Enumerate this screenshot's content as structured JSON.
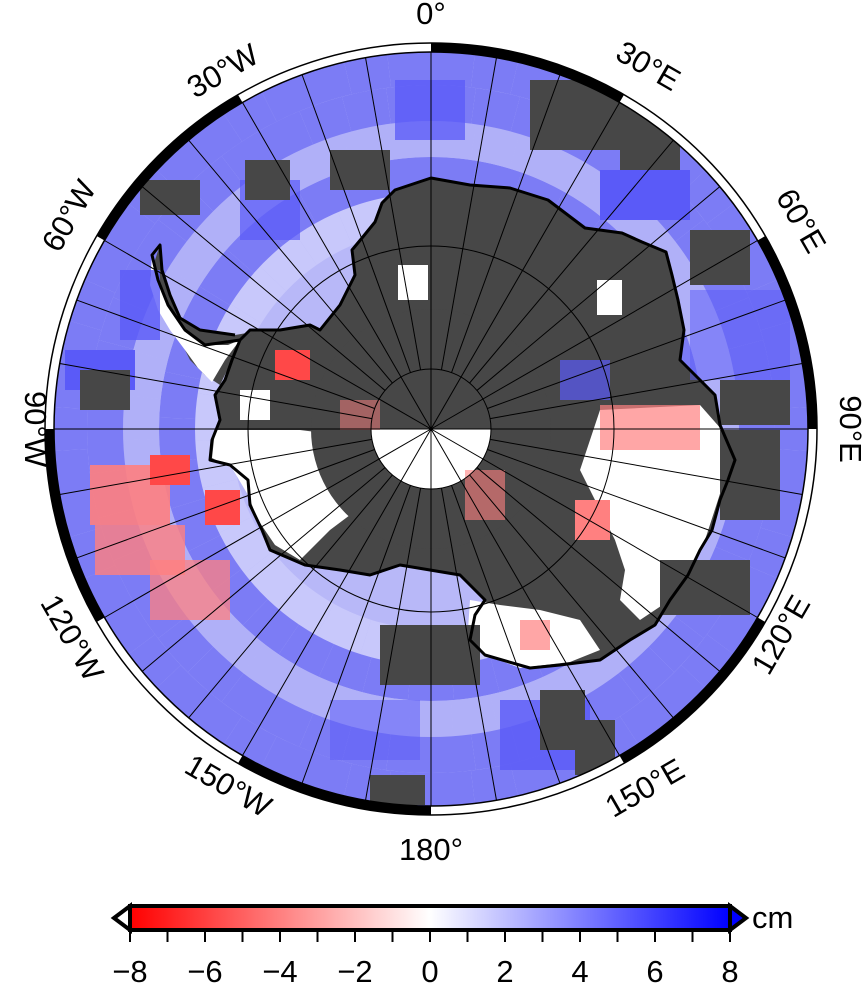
{
  "map": {
    "projection": "polar-stereographic-south",
    "longitude_labels": {
      "top": "0°",
      "bottom": "180°",
      "e30": "30°E",
      "e60": "60°E",
      "e90": "90°E",
      "e120": "120°E",
      "e150": "150°E",
      "w30": "30°W",
      "w60": "60°W",
      "w90": "90°W",
      "w120": "120°W",
      "w150": "150°W"
    },
    "colors": {
      "land_mask": "#474747",
      "coastline": "#000000",
      "frame": "#000000",
      "negative": "#ff0000",
      "zero": "#ffffff",
      "positive": "#0000ff"
    }
  },
  "colorbar": {
    "unit_label": "cm",
    "tick_labels": [
      "−8",
      "−6",
      "−4",
      "−2",
      "0",
      "2",
      "4",
      "6",
      "8"
    ],
    "min": -8,
    "max": 8,
    "colormap": [
      "#ff0000",
      "#ffffff",
      "#0000ff"
    ]
  }
}
